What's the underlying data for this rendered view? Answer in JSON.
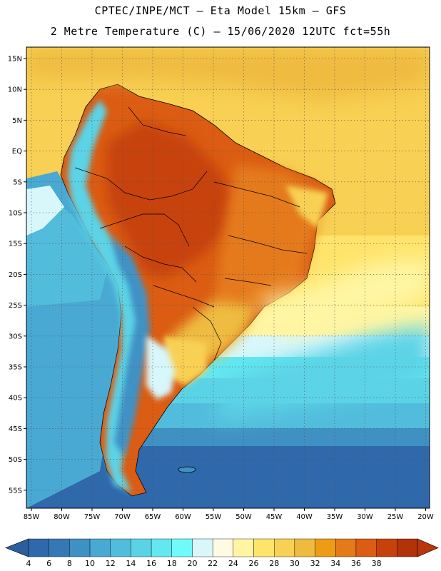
{
  "header": {
    "title_line1": "CPTEC/INPE/MCT –  Eta Model 15km – GFS",
    "title_line2": "2 Metre Temperature (C) – 15/06/2020 12UTC fct=55h"
  },
  "map": {
    "lat_labels": [
      "15N",
      "10N",
      "5N",
      "EQ",
      "5S",
      "10S",
      "15S",
      "20S",
      "25S",
      "30S",
      "35S",
      "40S",
      "45S",
      "50S",
      "55S"
    ],
    "lat_values": [
      15,
      10,
      5,
      0,
      -5,
      -10,
      -15,
      -20,
      -25,
      -30,
      -35,
      -40,
      -45,
      -50,
      -55
    ],
    "lon_labels": [
      "85W",
      "80W",
      "75W",
      "70W",
      "65W",
      "60W",
      "55W",
      "50W",
      "45W",
      "40W",
      "35W",
      "30W",
      "25W",
      "20W"
    ],
    "lon_values": [
      -85,
      -80,
      -75,
      -70,
      -65,
      -60,
      -55,
      -50,
      -45,
      -40,
      -35,
      -30,
      -25,
      -20
    ],
    "lat_range": [
      -58,
      17
    ],
    "lon_range": [
      -86,
      -20
    ]
  },
  "colorbar": {
    "labels": [
      "4",
      "6",
      "8",
      "10",
      "12",
      "14",
      "16",
      "18",
      "20",
      "22",
      "24",
      "26",
      "28",
      "30",
      "32",
      "34",
      "36",
      "38"
    ],
    "colors": [
      "#2f68ab",
      "#3479b6",
      "#3f91c4",
      "#49a9d3",
      "#52bcdc",
      "#5bd3e6",
      "#62e8f0",
      "#6ffbfa",
      "#d7f7fb",
      "#fffae4",
      "#fff5a3",
      "#ffe46b",
      "#f8d053",
      "#efbb3f",
      "#ee9c14",
      "#e57a1b",
      "#db5c12",
      "#c7420b",
      "#b2320a"
    ],
    "low_end_color": "#2a5e9e",
    "high_end_color": "#b8360a"
  }
}
